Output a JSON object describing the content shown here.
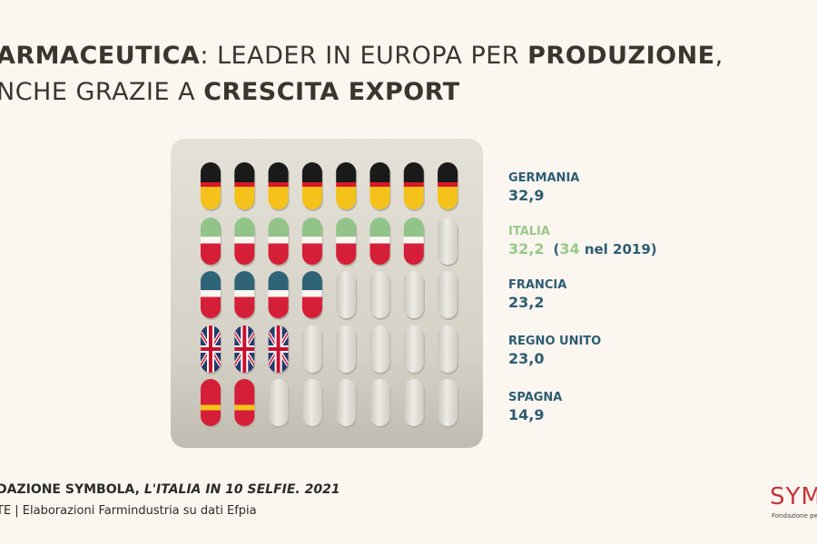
{
  "title": {
    "line1": [
      "ARMACEUTICA",
      ": LEADER IN EUROPA PER ",
      "PRODUZIONE",
      ","
    ],
    "line2": [
      "NCHE GRAZIE A ",
      "CRESCITA EXPORT"
    ]
  },
  "countries": [
    {
      "name": "GERMANIA",
      "value": "32,9"
    },
    {
      "name": "ITALIA",
      "value": "32,2",
      "note": {
        "open": "(",
        "value": "34",
        "text": " nel 2019)"
      }
    },
    {
      "name": "FRANCIA",
      "value": "23,2"
    },
    {
      "name": "REGNO UNITO",
      "value": "23,0"
    },
    {
      "name": "SPAGNA",
      "value": "14,9"
    }
  ],
  "footer": {
    "source": "DAZIONE SYMBOLA, ",
    "publication": "L'ITALIA IN 10 SELFIE. 2021",
    "line2": "TE | Elaborazioni Farmindustria su dati Efpia"
  },
  "logo": {
    "mark": "SYM",
    "text": "Fondazione per l"
  }
}
